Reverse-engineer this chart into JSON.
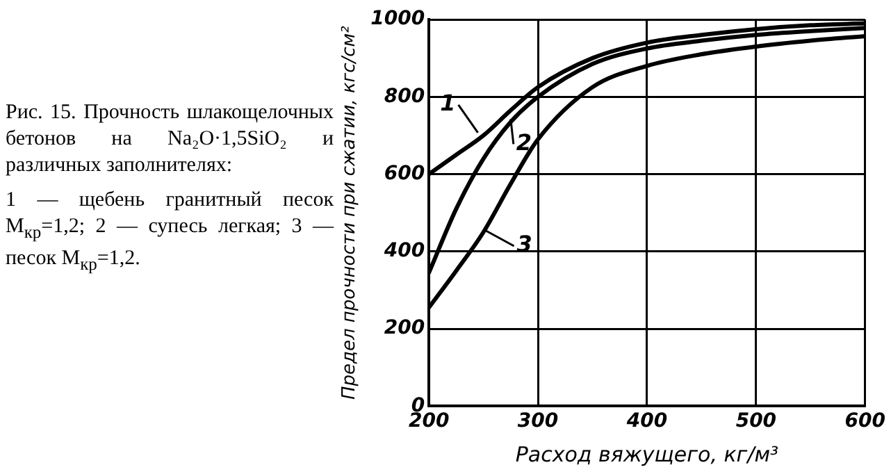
{
  "chart_data": {
    "type": "line",
    "title": "Рис. 15. Прочность шлакощелочных бетонов на Na₂O·1,5SiO₂ и различных заполнителях:",
    "annotations": [
      "1 — щебень гранитный песок М$_{кр}$=1,2; 2 — супесь легкая; 3 — песок М$_{кр}$=1,2."
    ],
    "xlabel": "Расход вяжущего, кг/м³",
    "ylabel": "Предел прочности при сжатии, кгс/см²",
    "x": [
      200,
      225,
      250,
      275,
      300,
      350,
      400,
      450,
      500,
      550,
      600
    ],
    "series": [
      {
        "name": "1",
        "color": "#000000",
        "values": [
          600,
          650,
          700,
          765,
          825,
          900,
          940,
          960,
          975,
          985,
          990
        ]
      },
      {
        "name": "2",
        "color": "#000000",
        "values": [
          345,
          510,
          640,
          735,
          800,
          885,
          925,
          945,
          960,
          970,
          978
        ]
      },
      {
        "name": "3",
        "color": "#000000",
        "values": [
          255,
          350,
          450,
          575,
          690,
          825,
          880,
          910,
          930,
          945,
          957
        ]
      }
    ],
    "xlim": [
      200,
      600
    ],
    "xticks": [
      200,
      300,
      400,
      500,
      600
    ],
    "ylim": [
      0,
      1000
    ],
    "yticks": [
      0,
      200,
      400,
      600,
      800,
      1000
    ],
    "grid": true,
    "legend": "top left",
    "marker": "none",
    "line_style": "solid"
  }
}
